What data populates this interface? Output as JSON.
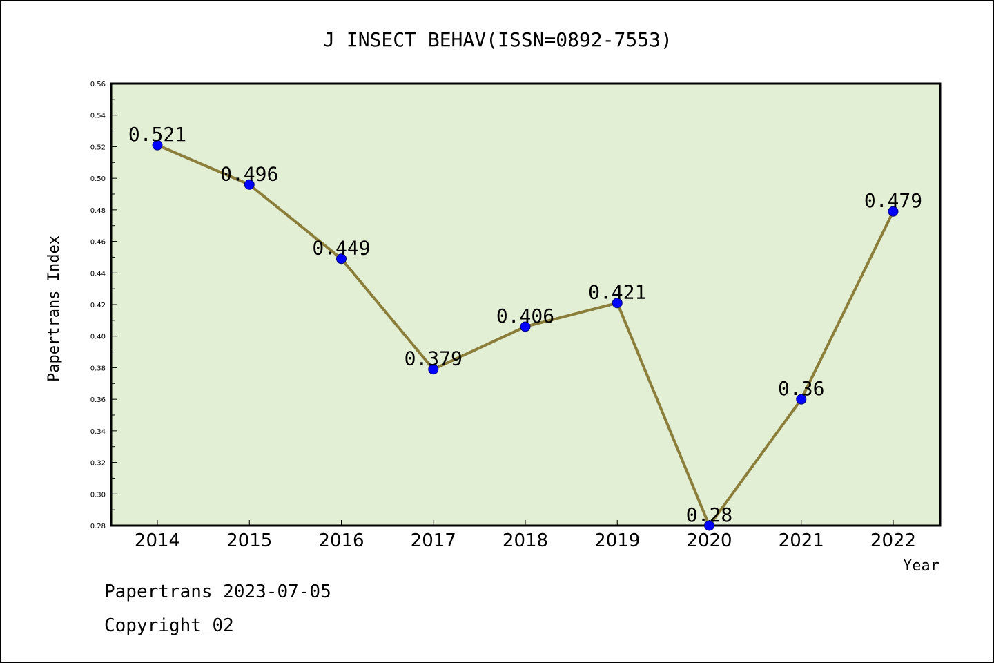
{
  "chart_data": {
    "type": "line",
    "title": "J INSECT BEHAV(ISSN=0892-7553)",
    "xlabel": "Year",
    "ylabel": "Papertrans Index",
    "categories": [
      "2014",
      "2015",
      "2016",
      "2017",
      "2018",
      "2019",
      "2020",
      "2021",
      "2022"
    ],
    "series": [
      {
        "values": [
          0.521,
          0.496,
          0.449,
          0.379,
          0.406,
          0.421,
          0.28,
          0.36,
          0.479
        ],
        "labels": [
          "0.521",
          "0.496",
          "0.449",
          "0.379",
          "0.406",
          "0.421",
          "0.28",
          "0.36",
          "0.479"
        ]
      }
    ],
    "ylim": [
      0.28,
      0.56
    ],
    "yticks": [
      "0.28",
      "0.30",
      "0.32",
      "0.34",
      "0.36",
      "0.38",
      "0.40",
      "0.42",
      "0.44",
      "0.46",
      "0.48",
      "0.50",
      "0.52",
      "0.54",
      "0.56"
    ],
    "grid": false,
    "colors": {
      "plot_background": "#e2efd4",
      "line": "#8b7d3a",
      "marker": "#0000ff"
    }
  },
  "footer": {
    "date_line": "Papertrans 2023-07-05",
    "copyright_line": "Copyright_02"
  }
}
